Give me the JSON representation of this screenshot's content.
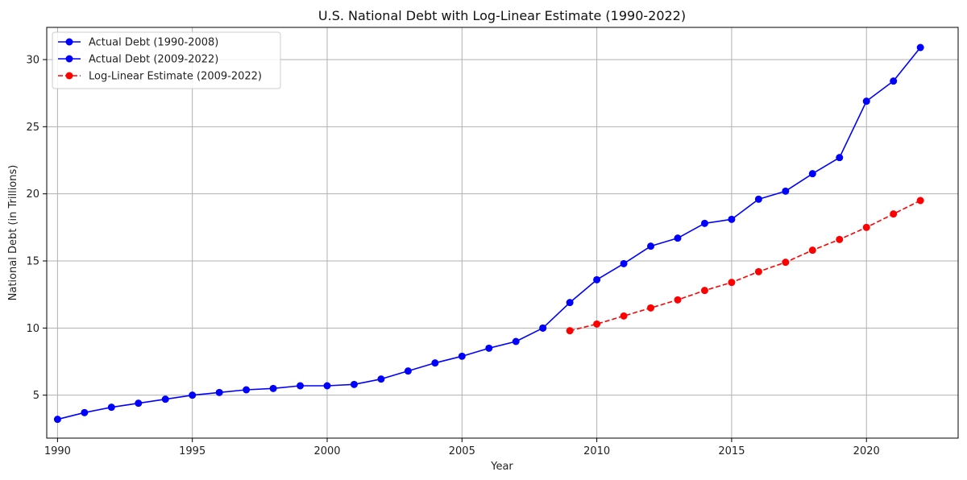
{
  "chart_data": {
    "type": "line",
    "title": "U.S. National Debt with Log-Linear Estimate (1990-2022)",
    "xlabel": "Year",
    "ylabel": "National Debt (in Trillions)",
    "xlim": [
      1989.6,
      2023.4
    ],
    "ylim": [
      1.8,
      32.4
    ],
    "x_ticks": [
      1990,
      1995,
      2000,
      2005,
      2010,
      2015,
      2020
    ],
    "y_ticks": [
      5,
      10,
      15,
      20,
      25,
      30
    ],
    "grid": true,
    "legend_position": "top-left",
    "series": [
      {
        "name": "Actual Debt (1990-2008)",
        "color": "#0000ff",
        "line_style": "solid",
        "marker": "circle",
        "x": [
          1990,
          1991,
          1992,
          1993,
          1994,
          1995,
          1996,
          1997,
          1998,
          1999,
          2000,
          2001,
          2002,
          2003,
          2004,
          2005,
          2006,
          2007,
          2008
        ],
        "y": [
          3.2,
          3.7,
          4.1,
          4.4,
          4.7,
          5.0,
          5.2,
          5.4,
          5.5,
          5.7,
          5.7,
          5.8,
          6.2,
          6.8,
          7.4,
          7.9,
          8.5,
          9.0,
          10.0
        ]
      },
      {
        "name": "Actual Debt (2009-2022)",
        "color": "#0000ff",
        "line_style": "solid",
        "marker": "circle",
        "x": [
          2008,
          2009,
          2010,
          2011,
          2012,
          2013,
          2014,
          2015,
          2016,
          2017,
          2018,
          2019,
          2020,
          2021,
          2022
        ],
        "y": [
          10.0,
          11.9,
          13.6,
          14.8,
          16.1,
          16.7,
          17.8,
          18.1,
          19.6,
          20.2,
          21.5,
          22.7,
          26.9,
          28.4,
          30.9
        ]
      },
      {
        "name": "Log-Linear Estimate (2009-2022)",
        "color": "#ff0000",
        "line_style": "dashed",
        "marker": "circle",
        "x": [
          2009,
          2010,
          2011,
          2012,
          2013,
          2014,
          2015,
          2016,
          2017,
          2018,
          2019,
          2020,
          2021,
          2022
        ],
        "y": [
          9.8,
          10.3,
          10.9,
          11.5,
          12.1,
          12.8,
          13.4,
          14.2,
          14.9,
          15.8,
          16.6,
          17.5,
          18.5,
          19.5
        ]
      }
    ]
  }
}
